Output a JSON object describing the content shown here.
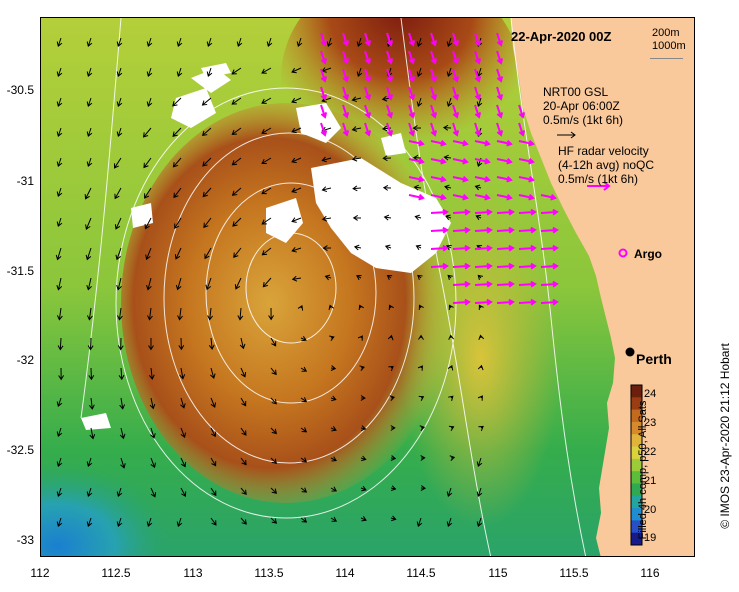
{
  "map": {
    "title": "22-Apr-2020 00Z",
    "scale": {
      "line1": "200m",
      "line2": "1000m"
    },
    "nrt_legend": {
      "line1": "NRT00 GSL",
      "line2": "20-Apr 06:00Z",
      "line3": "0.5m/s (1kt 6h)"
    },
    "hf_legend": {
      "line1": "HF radar velocity",
      "line2": "(4-12h avg) noQC",
      "line3": "0.5m/s (1kt 6h)"
    },
    "argo_label": "Argo",
    "city_label": "Perth",
    "lon_ticks": [
      "112",
      "112.5",
      "113",
      "113.5",
      "114",
      "114.5",
      "115",
      "115.5",
      "116"
    ],
    "lat_ticks": [
      "-30.5",
      "-31",
      "-31.5",
      "-32",
      "-32.5",
      "-33"
    ],
    "colorbar": {
      "ticks": [
        "24",
        "23",
        "22",
        "21",
        "20",
        "19"
      ],
      "label": "Filled 4h comp, p50, All Sats",
      "colors": [
        "#6b1f0c",
        "#9a3d12",
        "#c26a1e",
        "#d68a2a",
        "#e0b43a",
        "#d9d23c",
        "#9ccc3a",
        "#5cbd3b",
        "#2faa52",
        "#24a6a0",
        "#1f8ed0",
        "#2550c8",
        "#161a8a"
      ]
    },
    "credit": "© IMOS 23-Apr-2020 21:12 Hobart",
    "colors": {
      "land": "#f9c89b",
      "hf_arrow": "#ff00ff",
      "model_arrow": "#000000",
      "contour": "#ffffff",
      "cloud": "#ffffff"
    }
  }
}
